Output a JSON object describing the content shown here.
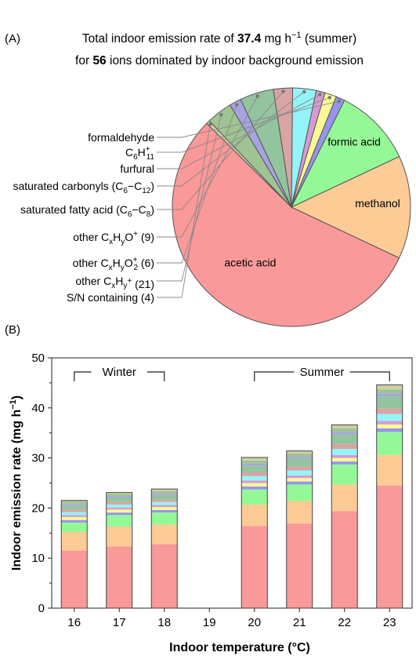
{
  "panel_a": {
    "label": "(A)",
    "title_line1": {
      "pre": "Total indoor emission rate of ",
      "value": "37.4",
      "unit": " mg h",
      "unit_sup": "−1",
      "post": " (summer)"
    },
    "title_line2": {
      "pre": "for ",
      "value": "56",
      "post": " ions dominated by indoor background emission"
    }
  },
  "panel_b": {
    "label": "(B)"
  },
  "colors": {
    "acetic": "#fa9999",
    "methanol": "#fdcb95",
    "formic": "#95f897",
    "sn": "#cfcfa8",
    "cxhy": "#9fc493",
    "cxhyo2": "#a7a3e0",
    "cxhyo": "#92c49e",
    "fatty": "#d8a4a4",
    "carbonyls": "#94f4f8",
    "furfural": "#d79bd3",
    "c6h11": "#f9f996",
    "formaldehyde": "#9595ef"
  },
  "chart_data": [
    {
      "type": "pie",
      "title": "Total indoor emission rate of 37.4 mg h−1 (summer) for 56 ions dominated by indoor background emission",
      "slices": [
        {
          "key": "acetic",
          "label": "acetic acid",
          "value": 55.5
        },
        {
          "key": "sn",
          "label": "S/N containing (4)",
          "value": 0.5
        },
        {
          "key": "cxhy",
          "label": "other CxHy+ (21)",
          "value": 3.5
        },
        {
          "key": "cxhyo2",
          "label": "other CxHyO2+ (6)",
          "value": 1.6
        },
        {
          "key": "cxhyo",
          "label": "other CxHyO+ (9)",
          "value": 4.6
        },
        {
          "key": "fatty",
          "label": "saturated fatty acid (C6−C8)",
          "value": 2.6
        },
        {
          "key": "carbonyls",
          "label": "saturated carbonyls (C6−C12)",
          "value": 3.2
        },
        {
          "key": "furfural",
          "label": "furfural",
          "value": 1.2
        },
        {
          "key": "c6h11",
          "label": "C6H11+",
          "value": 1.6
        },
        {
          "key": "formaldehyde",
          "label": "formaldehyde",
          "value": 1.2
        },
        {
          "key": "formic",
          "label": "formic acid",
          "value": 10.7
        },
        {
          "key": "methanol",
          "label": "methanol",
          "value": 14.0
        }
      ],
      "labels_text": {
        "formaldehyde": "formaldehyde",
        "c6h11": {
          "base": "C",
          "sub1": "6",
          "mid": "H",
          "sub2": "11",
          "sup": "+"
        },
        "furfural": "furfural",
        "carbonyls": {
          "pre": "saturated carbonyls (C",
          "sub1": "6",
          "mid": "−C",
          "sub2": "12",
          "post": ")"
        },
        "fatty": {
          "pre": "saturated fatty acid (C",
          "sub1": "6",
          "mid": "−C",
          "sub2": "8",
          "post": ")"
        },
        "cxhyo": {
          "pre": "other C",
          "sub1": "x",
          "mid": "H",
          "sub2": "y",
          "post": "O",
          "sup": "+",
          "tail": " (9)"
        },
        "cxhyo2": {
          "pre": "other C",
          "sub1": "x",
          "mid": "H",
          "sub2": "y",
          "post": "O",
          "sub3": "2",
          "sup": "+",
          "tail": " (6)"
        },
        "cxhy": {
          "pre": "other C",
          "sub1": "x",
          "mid": "H",
          "sub2": "y",
          "sup": "+",
          "tail": " (21)"
        },
        "sn": "S/N containing (4)",
        "formic": "formic acid",
        "methanol": "methanol",
        "acetic": "acetic acid"
      }
    },
    {
      "type": "bar",
      "stacked": true,
      "xlabel": "Indoor temperature (°C)",
      "ylabel": {
        "text": "Indoor emission rate (mg h",
        "sup": "−1",
        "close": ")"
      },
      "ylim": [
        0,
        50
      ],
      "yticks": [
        0,
        10,
        20,
        30,
        40,
        50
      ],
      "categories": [
        "16",
        "17",
        "18",
        "19",
        "20",
        "21",
        "22",
        "23"
      ],
      "groups": [
        {
          "label": "Winter",
          "from": "16",
          "to": "18"
        },
        {
          "label": "Summer",
          "from": "20",
          "to": "23"
        }
      ],
      "stack_order": [
        "acetic",
        "methanol",
        "formic",
        "formaldehyde",
        "c6h11",
        "furfural",
        "carbonyls",
        "fatty",
        "cxhyo",
        "cxhyo2",
        "cxhy",
        "sn"
      ],
      "bars": [
        {
          "x": "16",
          "values": {
            "acetic": 11.5,
            "methanol": 3.7,
            "formic": 1.9,
            "formaldehyde": 0.5,
            "c6h11": 0.6,
            "furfural": 0.4,
            "carbonyls": 0.6,
            "fatty": 0.5,
            "cxhyo": 0.8,
            "cxhyo2": 0.3,
            "cxhy": 0.5,
            "sn": 0.3
          },
          "total": 21.5
        },
        {
          "x": "17",
          "values": {
            "acetic": 12.3,
            "methanol": 4.0,
            "formic": 2.3,
            "formaldehyde": 0.5,
            "c6h11": 0.6,
            "furfural": 0.4,
            "carbonyls": 0.6,
            "fatty": 0.5,
            "cxhyo": 0.9,
            "cxhyo2": 0.3,
            "cxhy": 0.4,
            "sn": 0.3
          },
          "total": 23.1
        },
        {
          "x": "18",
          "values": {
            "acetic": 12.8,
            "methanol": 3.9,
            "formic": 2.4,
            "formaldehyde": 0.5,
            "c6h11": 0.6,
            "furfural": 0.4,
            "carbonyls": 0.6,
            "fatty": 0.5,
            "cxhyo": 0.9,
            "cxhyo2": 0.3,
            "cxhy": 0.5,
            "sn": 0.4
          },
          "total": 23.8
        },
        {
          "x": "20",
          "values": {
            "acetic": 16.4,
            "methanol": 4.3,
            "formic": 3.0,
            "formaldehyde": 0.6,
            "c6h11": 0.7,
            "furfural": 0.5,
            "carbonyls": 0.9,
            "fatty": 0.8,
            "cxhyo": 1.3,
            "cxhyo2": 0.4,
            "cxhy": 0.6,
            "sn": 0.6
          },
          "total": 30.1
        },
        {
          "x": "21",
          "values": {
            "acetic": 16.9,
            "methanol": 4.5,
            "formic": 3.3,
            "formaldehyde": 0.6,
            "c6h11": 0.7,
            "furfural": 0.5,
            "carbonyls": 1.0,
            "fatty": 0.8,
            "cxhyo": 1.5,
            "cxhyo2": 0.4,
            "cxhy": 0.7,
            "sn": 0.5
          },
          "total": 31.4
        },
        {
          "x": "22",
          "values": {
            "acetic": 19.4,
            "methanol": 5.3,
            "formic": 4.0,
            "formaldehyde": 0.6,
            "c6h11": 0.7,
            "furfural": 0.6,
            "carbonyls": 1.2,
            "fatty": 1.0,
            "cxhyo": 1.9,
            "cxhyo2": 0.5,
            "cxhy": 0.7,
            "sn": 0.7
          },
          "total": 36.6
        },
        {
          "x": "23",
          "values": {
            "acetic": 24.5,
            "methanol": 6.1,
            "formic": 4.6,
            "formaldehyde": 0.7,
            "c6h11": 0.8,
            "furfural": 0.7,
            "carbonyls": 1.4,
            "fatty": 1.1,
            "cxhyo": 2.4,
            "cxhyo2": 0.6,
            "cxhy": 0.8,
            "sn": 0.8
          },
          "total": 44.6
        }
      ]
    }
  ]
}
